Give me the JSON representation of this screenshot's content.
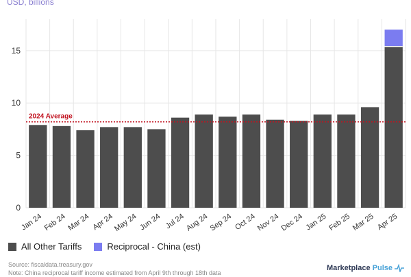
{
  "chart_data": {
    "type": "bar",
    "stacked": true,
    "unit_label": "USD, billions",
    "categories": [
      "Jan 24",
      "Feb 24",
      "Mar 24",
      "Apr 24",
      "May 24",
      "Jun 24",
      "Jul 24",
      "Aug 24",
      "Sep 24",
      "Oct 24",
      "Nov 24",
      "Dec 24",
      "Jan 25",
      "Feb 25",
      "Mar 25",
      "Apr 25"
    ],
    "series": [
      {
        "name": "All Other Tariffs",
        "color": "#4d4d4d",
        "values": [
          7.9,
          7.8,
          7.4,
          7.7,
          7.7,
          7.5,
          8.6,
          8.9,
          8.7,
          8.9,
          8.4,
          8.3,
          8.9,
          8.9,
          9.6,
          15.4
        ]
      },
      {
        "name": "Reciprocal - China (est)",
        "color": "#7b7cf0",
        "values": [
          0,
          0,
          0,
          0,
          0,
          0,
          0,
          0,
          0,
          0,
          0,
          0,
          0,
          0,
          0,
          1.6
        ]
      }
    ],
    "reference_line": {
      "label": "2024 Average",
      "value": 8.2,
      "color": "#c1121f",
      "style": "dotted"
    },
    "yticks": [
      0,
      5,
      10,
      15
    ],
    "ylim": [
      0,
      18
    ],
    "grid": true,
    "legend_position": "bottom-left"
  },
  "footer": {
    "source": "Source: fiscaldata.treasury.gov",
    "note": "Note: China reciprocal tariff income estimated from April 9th through 18th data"
  },
  "brand": {
    "name_part1": "Marketplace",
    "name_part2": "Pulse",
    "icon": "pulse-line-icon"
  }
}
